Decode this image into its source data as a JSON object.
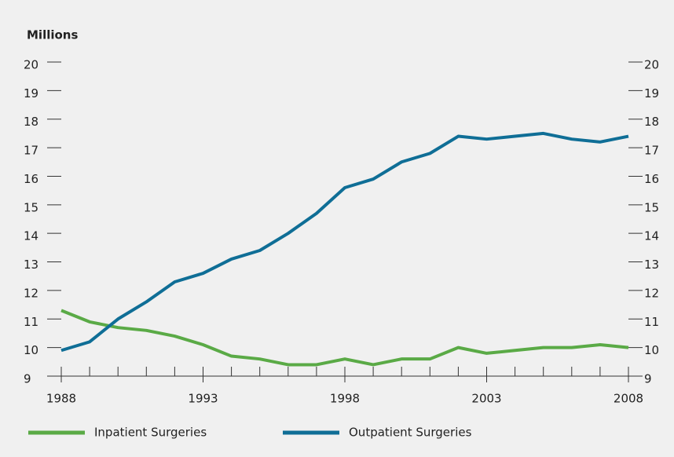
{
  "chart_data": {
    "type": "line",
    "y_label": "Millions",
    "x": [
      1988,
      1989,
      1990,
      1991,
      1992,
      1993,
      1994,
      1995,
      1996,
      1997,
      1998,
      1999,
      2000,
      2001,
      2002,
      2003,
      2004,
      2005,
      2006,
      2007,
      2008
    ],
    "xlim": [
      1988,
      2008
    ],
    "xticks": [
      1988,
      1993,
      1998,
      2003,
      2008
    ],
    "ylim": [
      9,
      20
    ],
    "yticks": [
      9,
      10,
      11,
      12,
      13,
      14,
      15,
      16,
      17,
      18,
      19,
      20
    ],
    "y2lim": [
      9,
      20
    ],
    "y2ticks": [
      9,
      10,
      11,
      12,
      13,
      14,
      15,
      16,
      17,
      18,
      19,
      20
    ],
    "legend": "bottom",
    "series": [
      {
        "name": "Inpatient Surgeries",
        "color": "#5aaa46",
        "values": [
          11.3,
          10.9,
          10.7,
          10.6,
          10.4,
          10.1,
          9.7,
          9.6,
          9.4,
          9.4,
          9.6,
          9.4,
          9.6,
          9.6,
          10.0,
          9.8,
          9.9,
          10.0,
          10.0,
          10.1,
          10.0
        ]
      },
      {
        "name": "Outpatient Surgeries",
        "color": "#0f6e96",
        "values": [
          9.9,
          10.2,
          11.0,
          11.6,
          12.3,
          12.6,
          13.1,
          13.4,
          14.0,
          14.7,
          15.6,
          15.9,
          16.5,
          16.8,
          17.4,
          17.3,
          17.4,
          17.5,
          17.3,
          17.2,
          17.4
        ]
      }
    ]
  }
}
